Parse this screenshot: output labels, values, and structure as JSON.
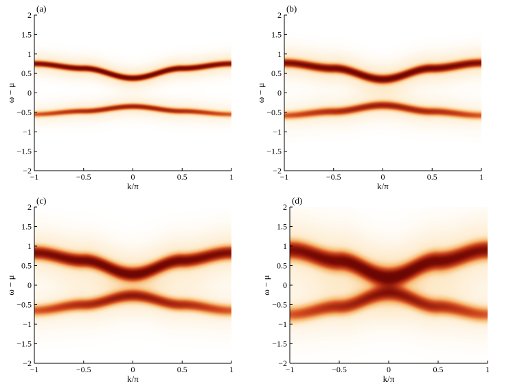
{
  "chart_data": [
    {
      "type": "heatmap",
      "panel_label": "(a)",
      "xlabel": "k/π",
      "ylabel": "ω − μ",
      "xlim": [
        -1,
        1
      ],
      "ylim": [
        -2,
        2
      ],
      "xticks": [
        "−1",
        "−0.5",
        "0",
        "0.5",
        "1"
      ],
      "yticks": [
        "−2",
        "−1.5",
        "−1",
        "−0.5",
        "0",
        "0.5",
        "1",
        "1.5",
        "2"
      ],
      "colormap": [
        "#ffffff",
        "#fde9c8",
        "#f6b56a",
        "#d2481e",
        "#7a0a04",
        "#3a0000"
      ],
      "bands": [
        {
          "name": "upper",
          "k": [
            -1,
            -0.5,
            0,
            0.5,
            1
          ],
          "omega": [
            0.75,
            0.63,
            0.38,
            0.63,
            0.75
          ],
          "width": 0.05
        },
        {
          "name": "lower",
          "k": [
            -1,
            -0.5,
            0,
            0.5,
            1
          ],
          "omega": [
            -0.55,
            -0.47,
            -0.35,
            -0.47,
            -0.55
          ],
          "width": 0.05
        }
      ]
    },
    {
      "type": "heatmap",
      "panel_label": "(b)",
      "xlabel": "k/π",
      "ylabel": "ω − μ",
      "xlim": [
        -1,
        1
      ],
      "ylim": [
        -2,
        2
      ],
      "xticks": [
        "−1",
        "−0.5",
        "0",
        "0.5",
        "1"
      ],
      "yticks": [
        "−2",
        "−1.5",
        "−1",
        "−0.5",
        "0",
        "0.5",
        "1",
        "1.5",
        "2"
      ],
      "colormap": [
        "#ffffff",
        "#fde9c8",
        "#f6b56a",
        "#d2481e",
        "#7a0a04",
        "#3a0000"
      ],
      "bands": [
        {
          "name": "upper",
          "k": [
            -1,
            -0.5,
            0,
            0.5,
            1
          ],
          "omega": [
            0.77,
            0.63,
            0.35,
            0.63,
            0.77
          ],
          "width": 0.07
        },
        {
          "name": "lower",
          "k": [
            -1,
            -0.5,
            0,
            0.5,
            1
          ],
          "omega": [
            -0.58,
            -0.48,
            -0.32,
            -0.48,
            -0.58
          ],
          "width": 0.07
        }
      ]
    },
    {
      "type": "heatmap",
      "panel_label": "(c)",
      "xlabel": "k/π",
      "ylabel": "ω − μ",
      "xlim": [
        -1,
        1
      ],
      "ylim": [
        -2,
        2
      ],
      "xticks": [
        "−1",
        "−0.5",
        "0",
        "0.5",
        "1"
      ],
      "yticks": [
        "−2",
        "−1.5",
        "−1",
        "−0.5",
        "0",
        "0.5",
        "1",
        "1.5",
        "2"
      ],
      "colormap": [
        "#ffffff",
        "#fde9c8",
        "#f6b56a",
        "#d2481e",
        "#7a0a04",
        "#3a0000"
      ],
      "bands": [
        {
          "name": "upper",
          "k": [
            -1,
            -0.5,
            0,
            0.5,
            1
          ],
          "omega": [
            0.83,
            0.63,
            0.28,
            0.63,
            0.83
          ],
          "width": 0.11
        },
        {
          "name": "lower",
          "k": [
            -1,
            -0.5,
            0,
            0.5,
            1
          ],
          "omega": [
            -0.65,
            -0.5,
            -0.27,
            -0.5,
            -0.65
          ],
          "width": 0.1
        }
      ]
    },
    {
      "type": "heatmap",
      "panel_label": "(d)",
      "xlabel": "k/π",
      "ylabel": "ω − μ",
      "xlim": [
        -1,
        1
      ],
      "ylim": [
        -2,
        2
      ],
      "xticks": [
        "−1",
        "−0.5",
        "0",
        "0.5",
        "1"
      ],
      "yticks": [
        "−2",
        "−1.5",
        "−1",
        "−0.5",
        "0",
        "0.5",
        "1",
        "1.5",
        "2"
      ],
      "colormap": [
        "#ffffff",
        "#fde9c8",
        "#f6b56a",
        "#d2481e",
        "#7a0a04",
        "#3a0000"
      ],
      "bands": [
        {
          "name": "upper",
          "k": [
            -1,
            -0.5,
            0,
            0.5,
            1
          ],
          "omega": [
            0.9,
            0.62,
            0.2,
            0.62,
            0.9
          ],
          "width": 0.15
        },
        {
          "name": "lower",
          "k": [
            -1,
            -0.5,
            0,
            0.5,
            1
          ],
          "omega": [
            -0.75,
            -0.55,
            -0.2,
            -0.55,
            -0.75
          ],
          "width": 0.13
        }
      ]
    }
  ]
}
